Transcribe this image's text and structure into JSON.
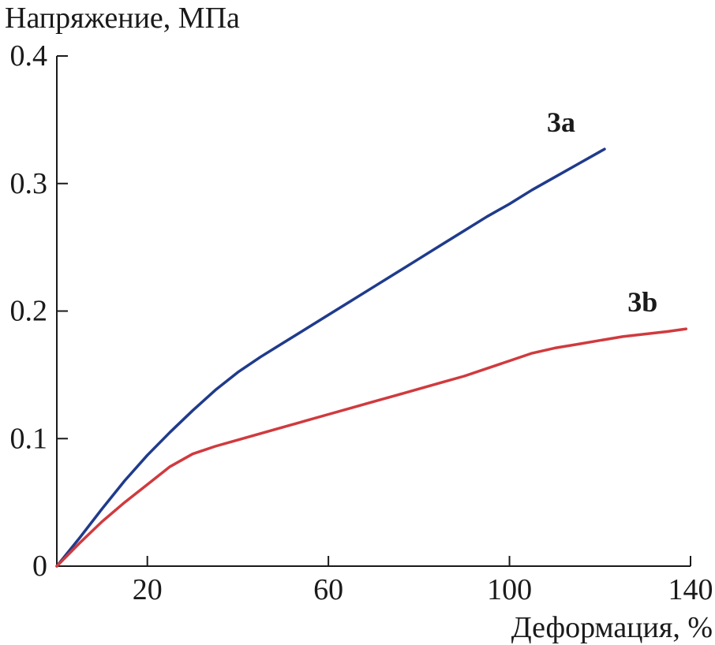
{
  "chart_data": {
    "type": "line",
    "xlabel": "Деформация, %",
    "ylabel": "Напряжение, МПа",
    "xlim": [
      0,
      140
    ],
    "ylim": [
      0,
      0.4
    ],
    "x_ticks": [
      20,
      60,
      100,
      140
    ],
    "x_tick_labels": [
      "20",
      "60",
      "100",
      "140"
    ],
    "y_ticks": [
      0,
      0.1,
      0.2,
      0.3,
      0.4
    ],
    "y_tick_labels": [
      "0",
      "0.1",
      "0.2",
      "0.3",
      "0.4"
    ],
    "grid": false,
    "legend": "none (series labeled directly on curves)",
    "series": [
      {
        "name": "3a",
        "color": "#1f3b8c",
        "x": [
          0,
          5,
          10,
          15,
          20,
          25,
          30,
          35,
          40,
          45,
          50,
          55,
          60,
          65,
          70,
          75,
          80,
          85,
          90,
          95,
          100,
          105,
          110,
          115,
          120,
          121
        ],
        "y": [
          0,
          0.022,
          0.045,
          0.067,
          0.087,
          0.105,
          0.122,
          0.138,
          0.152,
          0.164,
          0.175,
          0.186,
          0.197,
          0.208,
          0.219,
          0.23,
          0.241,
          0.252,
          0.263,
          0.274,
          0.284,
          0.295,
          0.305,
          0.315,
          0.325,
          0.327
        ]
      },
      {
        "name": "3b",
        "color": "#d03a3e",
        "x": [
          0,
          5,
          10,
          15,
          20,
          25,
          30,
          35,
          40,
          45,
          50,
          55,
          60,
          65,
          70,
          75,
          80,
          85,
          90,
          95,
          100,
          105,
          110,
          115,
          120,
          125,
          130,
          135,
          139
        ],
        "y": [
          0,
          0.018,
          0.035,
          0.05,
          0.064,
          0.078,
          0.088,
          0.094,
          0.099,
          0.104,
          0.109,
          0.114,
          0.119,
          0.124,
          0.129,
          0.134,
          0.139,
          0.144,
          0.149,
          0.155,
          0.161,
          0.167,
          0.171,
          0.174,
          0.177,
          0.18,
          0.182,
          0.184,
          0.186
        ]
      }
    ]
  }
}
